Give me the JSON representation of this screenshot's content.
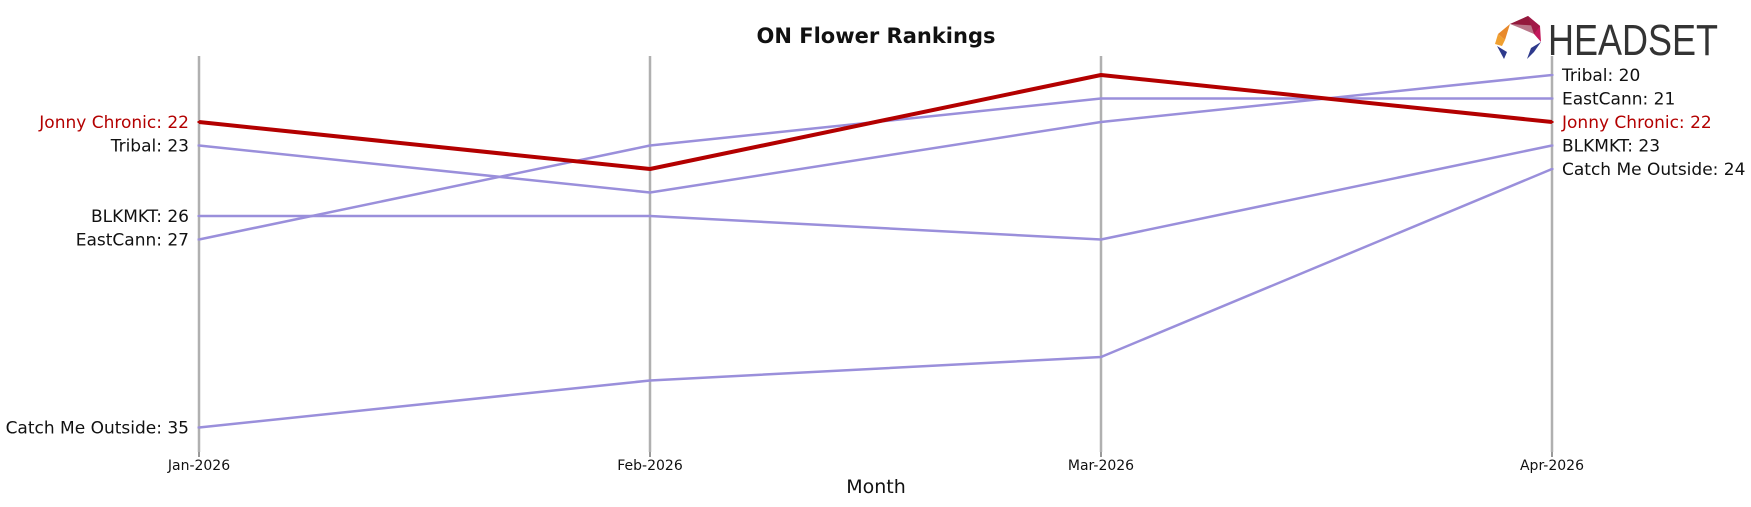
{
  "chart_data": {
    "type": "line",
    "title": "ON Flower Rankings",
    "xlabel": "Month",
    "ylabel": "",
    "categories": [
      "Jan-2026",
      "Feb-2026",
      "Mar-2026",
      "Apr-2026"
    ],
    "ylim": [
      19.2,
      35.8
    ],
    "y_inverted": true,
    "grid": false,
    "highlight_color": "#b30000",
    "series_color": "#9a8fdb",
    "axis_color": "#b0b0b0",
    "series": [
      {
        "name": "Jonny Chronic",
        "values": [
          22,
          24,
          20,
          22
        ],
        "highlight": true,
        "start_label": "Jonny Chronic: 22",
        "end_label": "Jonny Chronic: 22"
      },
      {
        "name": "Tribal",
        "values": [
          23,
          25,
          22,
          20
        ],
        "highlight": false,
        "start_label": "Tribal: 23",
        "end_label": "Tribal: 20"
      },
      {
        "name": "EastCann",
        "values": [
          27,
          23,
          21,
          21
        ],
        "highlight": false,
        "start_label": "EastCann: 27",
        "end_label": "EastCann: 21"
      },
      {
        "name": "BLKMKT",
        "values": [
          26,
          26,
          27,
          23
        ],
        "highlight": false,
        "start_label": "BLKMKT: 26",
        "end_label": "BLKMKT: 23"
      },
      {
        "name": "Catch Me Outside",
        "values": [
          35,
          33,
          32,
          24
        ],
        "highlight": false,
        "start_label": "Catch Me Outside: 35",
        "end_label": "Catch Me Outside: 24"
      }
    ]
  },
  "logo": {
    "text": "HEADSET",
    "icon": "headset-hexagon-logo-icon"
  }
}
